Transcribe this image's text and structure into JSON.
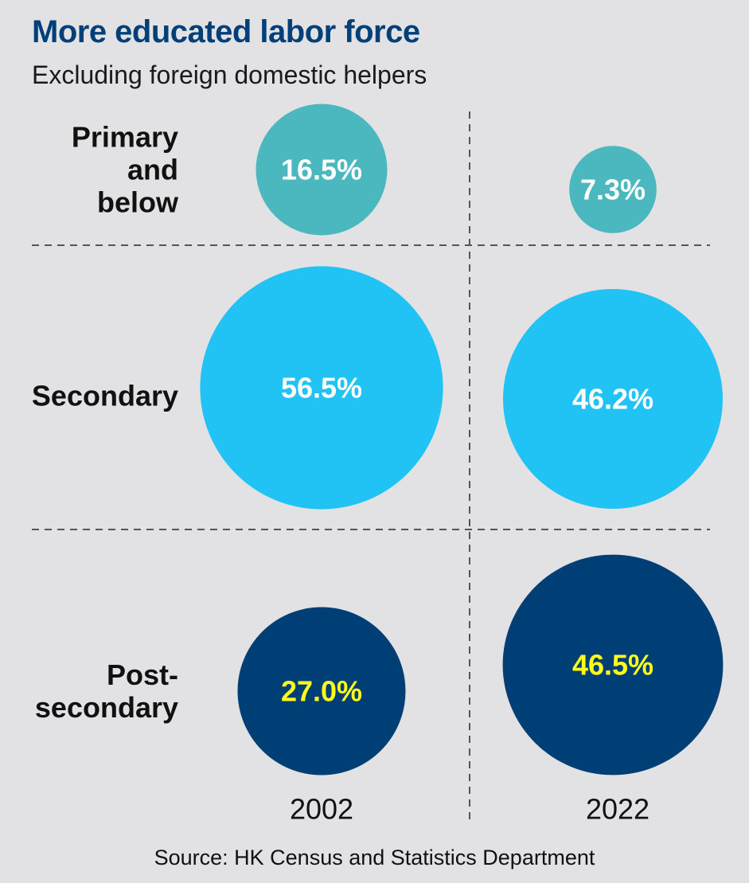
{
  "chart_data": {
    "type": "bubble-grid",
    "title": "More educated labor force",
    "subtitle": "Excluding foreign domestic helpers",
    "categories": [
      "Primary and below",
      "Secondary",
      "Post-secondary"
    ],
    "category_lines": [
      [
        "Primary",
        "and",
        "below"
      ],
      [
        "Secondary"
      ],
      [
        "Post-",
        "secondary"
      ]
    ],
    "years": [
      "2002",
      "2022"
    ],
    "series": [
      {
        "year": "2002",
        "values": [
          16.5,
          56.5,
          27.0
        ],
        "labels": [
          "16.5%",
          "56.5%",
          "27.0%"
        ]
      },
      {
        "year": "2022",
        "values": [
          7.3,
          46.2,
          46.5
        ],
        "labels": [
          "7.3%",
          "46.2%",
          "46.5%"
        ]
      }
    ],
    "colors": [
      "#4bb8c0",
      "#21c3f4",
      "#003f75"
    ],
    "label_colors": [
      "#ffffff",
      "#ffffff",
      "#ffff1a"
    ],
    "source": "Source: HK Census and Statistics Department"
  }
}
